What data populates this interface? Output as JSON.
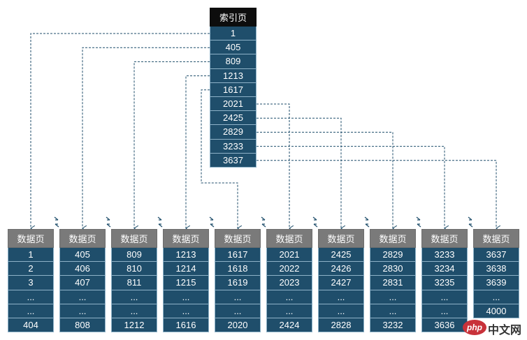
{
  "index_page": {
    "title": "索引页",
    "keys": [
      "1",
      "405",
      "809",
      "1213",
      "1617",
      "2021",
      "2425",
      "2829",
      "3233",
      "3637"
    ]
  },
  "data_pages": [
    {
      "title": "数据页",
      "rows": [
        "1",
        "2",
        "3",
        "...",
        "...",
        "404"
      ]
    },
    {
      "title": "数据页",
      "rows": [
        "405",
        "406",
        "407",
        "...",
        "...",
        "808"
      ]
    },
    {
      "title": "数据页",
      "rows": [
        "809",
        "810",
        "811",
        "...",
        "...",
        "1212"
      ]
    },
    {
      "title": "数据页",
      "rows": [
        "1213",
        "1214",
        "1215",
        "...",
        "...",
        "1616"
      ]
    },
    {
      "title": "数据页",
      "rows": [
        "1617",
        "1618",
        "1619",
        "...",
        "...",
        "2020"
      ]
    },
    {
      "title": "数据页",
      "rows": [
        "2021",
        "2022",
        "2023",
        "...",
        "...",
        "2424"
      ]
    },
    {
      "title": "数据页",
      "rows": [
        "2425",
        "2426",
        "2427",
        "...",
        "...",
        "2828"
      ]
    },
    {
      "title": "数据页",
      "rows": [
        "2829",
        "2830",
        "2831",
        "...",
        "...",
        "3232"
      ]
    },
    {
      "title": "数据页",
      "rows": [
        "3233",
        "3234",
        "3235",
        "...",
        "...",
        "3636"
      ]
    },
    {
      "title": "数据页",
      "rows": [
        "3637",
        "3638",
        "3639",
        "...",
        "4000",
        ""
      ]
    }
  ],
  "watermark": {
    "badge": "php",
    "text": "中文网"
  },
  "colors": {
    "index_header": "#0d0d0d",
    "page_header": "#7a7a7a",
    "cell": "#1f4e6b",
    "line": "#1f4e6b"
  }
}
